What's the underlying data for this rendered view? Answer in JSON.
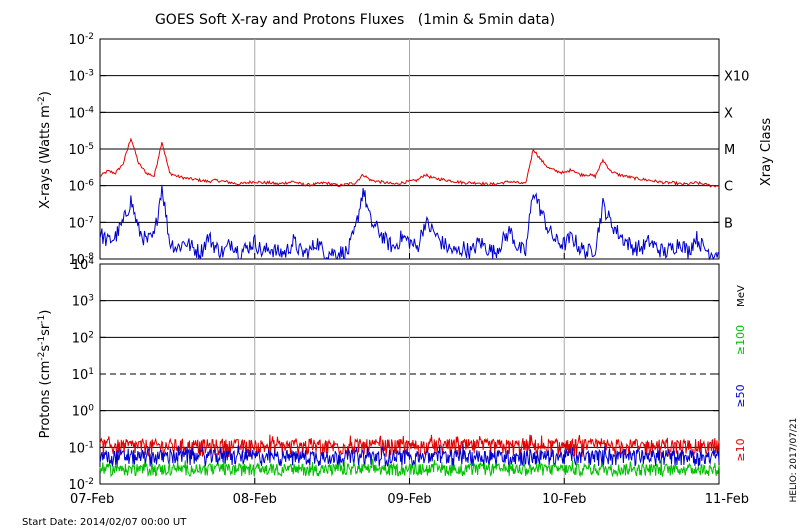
{
  "chart_data": {
    "title": "GOES Soft X-ray and Protons Fluxes   (1min & 5min data)",
    "start_date_label": "Start Date: 2014/02/07 00:00 UT",
    "credit": "HELIO: 2017/07/21",
    "x_ticks": [
      "07-Feb",
      "08-Feb",
      "09-Feb",
      "10-Feb",
      "11-Feb"
    ],
    "xrays": {
      "type": "line",
      "ylabel_main": "X-rays (Watts m",
      "ylabel_exp": "-2",
      "ylabel_tail": ")",
      "ylim": [
        1e-08,
        0.01
      ],
      "y_scale": "log",
      "y_ticks": [
        {
          "base": "10",
          "exp": "-8"
        },
        {
          "base": "10",
          "exp": "-7"
        },
        {
          "base": "10",
          "exp": "-6"
        },
        {
          "base": "10",
          "exp": "-5"
        },
        {
          "base": "10",
          "exp": "-4"
        },
        {
          "base": "10",
          "exp": "-3"
        },
        {
          "base": "10",
          "exp": "-2"
        }
      ],
      "class_axis_title": "Xray Class",
      "class_labels": [
        "B",
        "C",
        "M",
        "X",
        "X10"
      ],
      "series": [
        {
          "color": "#e00000",
          "x": [
            0,
            0.05,
            0.1,
            0.15,
            0.2,
            0.25,
            0.3,
            0.35,
            0.4,
            0.45,
            0.5,
            0.55,
            0.6,
            0.65,
            0.7,
            0.75,
            0.8,
            0.85,
            0.9,
            0.95,
            1.0,
            1.05,
            1.1,
            1.15,
            1.2,
            1.25,
            1.3,
            1.35,
            1.4,
            1.45,
            1.5,
            1.55,
            1.6,
            1.65,
            1.7,
            1.75,
            1.8,
            1.85,
            1.9,
            1.95,
            2.0,
            2.05,
            2.1,
            2.15,
            2.2,
            2.25,
            2.3,
            2.35,
            2.4,
            2.45,
            2.5,
            2.55,
            2.6,
            2.65,
            2.7,
            2.75,
            2.8,
            2.85,
            2.9,
            2.95,
            3.0,
            3.05,
            3.1,
            3.15,
            3.2,
            3.25,
            3.3,
            3.35,
            3.4,
            3.45,
            3.5,
            3.55,
            3.6,
            3.65,
            3.7,
            3.75,
            3.8,
            3.85,
            3.9,
            3.95,
            4.0
          ],
          "y": [
            1.8e-06,
            2.5e-06,
            2.2e-06,
            4e-06,
            2e-05,
            4e-06,
            2.2e-06,
            1.8e-06,
            1.6e-05,
            2.2e-06,
            1.8e-06,
            1.6e-06,
            1.5e-06,
            1.4e-06,
            1.3e-06,
            1.4e-06,
            1.3e-06,
            1.2e-06,
            1.1e-06,
            1.2e-06,
            1.3e-06,
            1.2e-06,
            1.2e-06,
            1.1e-06,
            1.2e-06,
            1.3e-06,
            1.1e-06,
            1.05e-06,
            1.1e-06,
            1.2e-06,
            1.1e-06,
            1e-06,
            1.1e-06,
            1.2e-06,
            2e-06,
            1.4e-06,
            1.3e-06,
            1.2e-06,
            1.1e-06,
            1.2e-06,
            1.3e-06,
            1.4e-06,
            2e-06,
            1.6e-06,
            1.5e-06,
            1.4e-06,
            1.3e-06,
            1.2e-06,
            1.2e-06,
            1.2e-06,
            1.1e-06,
            1.1e-06,
            1.2e-06,
            1.3e-06,
            1.2e-06,
            1.1e-06,
            1e-05,
            5e-06,
            3e-06,
            2.5e-06,
            2.2e-06,
            2.8e-06,
            2e-06,
            2e-06,
            1.8e-06,
            5e-06,
            2.5e-06,
            2e-06,
            1.8e-06,
            1.6e-06,
            1.5e-06,
            1.4e-06,
            1.3e-06,
            1.2e-06,
            1.2e-06,
            1.1e-06,
            1.1e-06,
            1.2e-06,
            1.1e-06,
            1e-06,
            1e-06
          ]
        },
        {
          "color": "#0000d0",
          "x": [
            0,
            0.05,
            0.1,
            0.15,
            0.2,
            0.25,
            0.3,
            0.35,
            0.4,
            0.45,
            0.5,
            0.55,
            0.6,
            0.65,
            0.7,
            0.75,
            0.8,
            0.85,
            0.9,
            0.95,
            1.0,
            1.05,
            1.1,
            1.15,
            1.2,
            1.25,
            1.3,
            1.35,
            1.4,
            1.45,
            1.5,
            1.55,
            1.6,
            1.65,
            1.7,
            1.75,
            1.8,
            1.85,
            1.9,
            1.95,
            2.0,
            2.05,
            2.1,
            2.15,
            2.2,
            2.25,
            2.3,
            2.35,
            2.4,
            2.45,
            2.5,
            2.55,
            2.6,
            2.65,
            2.7,
            2.75,
            2.8,
            2.85,
            2.9,
            2.95,
            3.0,
            3.05,
            3.1,
            3.15,
            3.2,
            3.25,
            3.3,
            3.35,
            3.4,
            3.45,
            3.5,
            3.55,
            3.6,
            3.65,
            3.7,
            3.75,
            3.8,
            3.85,
            3.9,
            3.95,
            4.0
          ],
          "y": [
            5e-08,
            3e-08,
            4e-08,
            1e-07,
            4e-07,
            6e-08,
            3e-08,
            4e-08,
            1e-06,
            3e-08,
            2e-08,
            3e-08,
            2e-08,
            1.5e-08,
            4e-08,
            2e-08,
            1.5e-08,
            3e-08,
            1.5e-08,
            2e-08,
            3e-08,
            1.5e-08,
            2e-08,
            1.5e-08,
            1.5e-08,
            3e-08,
            1.5e-08,
            1.5e-08,
            3e-08,
            1.5e-08,
            1.5e-08,
            1.5e-08,
            1.5e-08,
            6e-08,
            8e-07,
            1e-07,
            6e-08,
            3e-08,
            2e-08,
            4e-08,
            3e-08,
            2e-08,
            1e-07,
            6e-08,
            3e-08,
            2e-08,
            1.5e-08,
            2e-08,
            1.5e-08,
            3e-08,
            2e-08,
            1.5e-08,
            3e-08,
            6e-08,
            2e-08,
            1.5e-08,
            8e-07,
            2e-07,
            6e-08,
            3e-08,
            2.5e-08,
            4e-08,
            2e-08,
            1.5e-08,
            2e-08,
            3e-07,
            1e-07,
            5e-08,
            3e-08,
            2e-08,
            2e-08,
            3e-08,
            2e-08,
            1.5e-08,
            2e-08,
            3e-08,
            1.5e-08,
            4e-08,
            2e-08,
            1.5e-08,
            1.5e-08
          ]
        }
      ]
    },
    "protons": {
      "type": "line",
      "ylabel_main": "Protons (cm",
      "ylabel_exp1": "-2",
      "ylabel_mid": "s",
      "ylabel_exp2": "-1",
      "ylabel_mid2": "sr",
      "ylabel_exp3": "-1",
      "ylabel_tail": ")",
      "ylim": [
        0.01,
        10000
      ],
      "y_scale": "log",
      "y_ticks": [
        {
          "base": "10",
          "exp": "-2"
        },
        {
          "base": "10",
          "exp": "-1"
        },
        {
          "base": "10",
          "exp": "0"
        },
        {
          "base": "10",
          "exp": "1"
        },
        {
          "base": "10",
          "exp": "2"
        },
        {
          "base": "10",
          "exp": "3"
        },
        {
          "base": "10",
          "exp": "4"
        }
      ],
      "threshold_value": 10,
      "unit_label": "MeV",
      "legend": [
        {
          "label": "≥100",
          "color": "#00c000"
        },
        {
          "label": "≥50",
          "color": "#0000d0"
        },
        {
          "label": "≥10",
          "color": "#e00000"
        }
      ],
      "series": [
        {
          "name": "≥10",
          "color": "#e00000",
          "mean": 0.105,
          "spread": 0.07
        },
        {
          "name": "≥50",
          "color": "#0000d0",
          "mean": 0.055,
          "spread": 0.035
        },
        {
          "name": "≥100",
          "color": "#00c000",
          "mean": 0.025,
          "spread": 0.012
        }
      ]
    }
  }
}
